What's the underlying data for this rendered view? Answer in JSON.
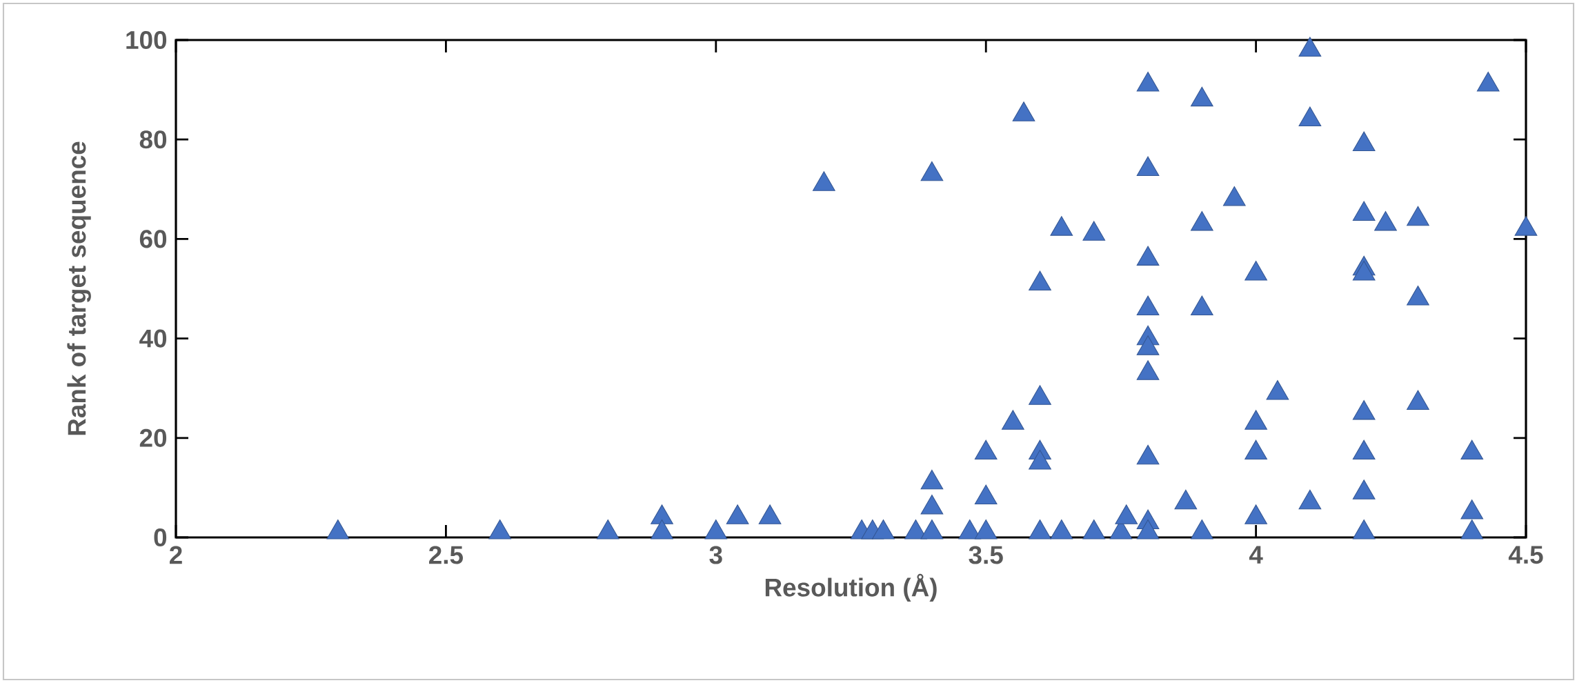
{
  "chart_data": {
    "type": "scatter",
    "xlabel": "Resolution (Å)",
    "ylabel": "Rank of target sequence",
    "xlim": [
      2,
      4.5
    ],
    "xticks": [
      2,
      2.5,
      3,
      3.5,
      4,
      4.5
    ],
    "ylim": [
      0,
      100
    ],
    "yticks": [
      0,
      20,
      40,
      60,
      80,
      100
    ],
    "marker": "triangle",
    "series": [
      {
        "color": "#4472c4",
        "x": [
          2.3,
          2.6,
          2.8,
          2.9,
          2.9,
          3.0,
          3.04,
          3.1,
          3.2,
          3.27,
          3.29,
          3.31,
          3.37,
          3.4,
          3.4,
          3.4,
          3.4,
          3.47,
          3.5,
          3.5,
          3.5,
          3.55,
          3.57,
          3.6,
          3.6,
          3.6,
          3.6,
          3.6,
          3.64,
          3.64,
          3.7,
          3.7,
          3.75,
          3.76,
          3.8,
          3.8,
          3.8,
          3.8,
          3.8,
          3.8,
          3.8,
          3.8,
          3.8,
          3.8,
          3.87,
          3.9,
          3.9,
          3.9,
          3.9,
          3.96,
          4.0,
          4.0,
          4.0,
          4.0,
          4.04,
          4.1,
          4.1,
          4.1,
          4.2,
          4.2,
          4.2,
          4.2,
          4.2,
          4.2,
          4.2,
          4.2,
          4.24,
          4.3,
          4.3,
          4.3,
          4.4,
          4.4,
          4.4,
          4.43,
          4.5
        ],
        "values": [
          1,
          1,
          1,
          4,
          1,
          1,
          4,
          4,
          71,
          1,
          1,
          1,
          1,
          73,
          11,
          6,
          1,
          1,
          17,
          8,
          1,
          23,
          85,
          51,
          28,
          17,
          15,
          1,
          62,
          1,
          61,
          1,
          1,
          4,
          91,
          74,
          56,
          46,
          40,
          38,
          33,
          16,
          3,
          1,
          7,
          88,
          63,
          46,
          1,
          68,
          53,
          23,
          17,
          4,
          29,
          98,
          84,
          7,
          79,
          65,
          54,
          53,
          25,
          17,
          9,
          1,
          63,
          64,
          48,
          27,
          17,
          5,
          1,
          91,
          62
        ]
      }
    ]
  }
}
